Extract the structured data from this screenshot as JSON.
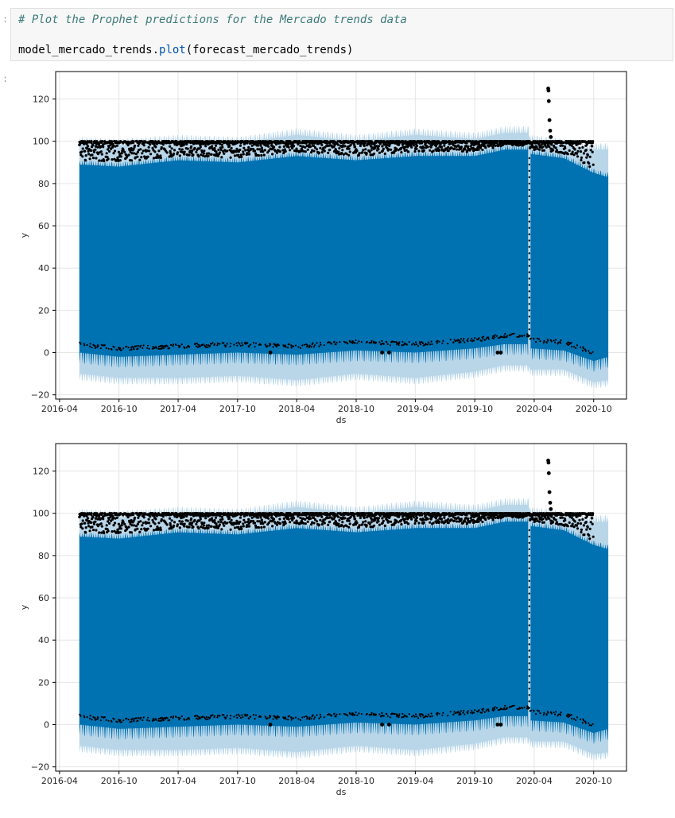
{
  "prompt_marker": ":",
  "cell": {
    "comment": "# Plot the Prophet predictions for the Mercado trends data",
    "code_object": "model_mercado_trends.",
    "code_method": "plot",
    "code_args": "(forecast_mercado_trends)"
  },
  "colors": {
    "forecast": "#0072B2",
    "uncertainty": "#B9D6E9",
    "observed": "#000000",
    "code_comment": "#3d7b7b",
    "code_call": "#0055aa"
  },
  "chart_data": [
    {
      "type": "line",
      "title": "",
      "xlabel": "ds",
      "ylabel": "y",
      "xticks": [
        "2016-04",
        "2016-10",
        "2017-04",
        "2017-10",
        "2018-04",
        "2018-10",
        "2019-04",
        "2019-10",
        "2020-04",
        "2020-10"
      ],
      "yticks": [
        -20,
        0,
        20,
        40,
        60,
        80,
        100,
        120
      ],
      "xlim": [
        "2016-03-20",
        "2021-01-10"
      ],
      "ylim": [
        -22,
        133
      ],
      "grid": true,
      "series": [
        {
          "kind": "forecast-band",
          "x": [
            "2016-06-01",
            "2016-10-01",
            "2017-04-01",
            "2017-10-01",
            "2018-04-01",
            "2018-10-01",
            "2019-04-01",
            "2019-10-01",
            "2020-01-01",
            "2020-03-14",
            "2020-03-20",
            "2020-07-01",
            "2020-10-01",
            "2020-11-15"
          ],
          "upper": [
            99,
            98,
            100,
            99,
            103,
            100,
            103,
            101,
            104,
            104,
            100,
            98,
            96,
            96
          ],
          "lower": [
            -10,
            -12,
            -12,
            -11,
            -13,
            -10,
            -12,
            -9,
            -6,
            -6,
            -8,
            -8,
            -14,
            -13
          ]
        },
        {
          "kind": "forecast-mean",
          "x": [
            "2016-06-01",
            "2016-10-01",
            "2017-04-01",
            "2017-10-01",
            "2018-04-01",
            "2018-10-01",
            "2019-04-01",
            "2019-10-01",
            "2020-01-01",
            "2020-03-14",
            "2020-03-20",
            "2020-07-01",
            "2020-10-01",
            "2020-11-15"
          ],
          "upper": [
            91,
            90,
            93,
            92,
            95,
            93,
            95,
            95,
            98,
            98,
            96,
            94,
            87,
            85
          ],
          "lower": [
            -3,
            -5,
            -4,
            -3,
            -4,
            -2,
            -3,
            -1,
            1,
            1,
            -1,
            -2,
            -7,
            -5
          ]
        },
        {
          "kind": "observed-points",
          "x_range": [
            "2016-06-01",
            "2020-09-30"
          ],
          "y_typical": [
            90,
            100
          ],
          "outliers": [
            {
              "x": "2018-01-10",
              "y": 0
            },
            {
              "x": "2018-12-20",
              "y": 0
            },
            {
              "x": "2019-01-10",
              "y": 0
            },
            {
              "x": "2019-12-10",
              "y": 0
            },
            {
              "x": "2019-12-20",
              "y": 0
            },
            {
              "x": "2020-05-14",
              "y": 125
            },
            {
              "x": "2020-05-15",
              "y": 124
            },
            {
              "x": "2020-05-16",
              "y": 119
            },
            {
              "x": "2020-05-18",
              "y": 110
            },
            {
              "x": "2020-05-20",
              "y": 105
            },
            {
              "x": "2020-05-22",
              "y": 102
            }
          ]
        }
      ]
    },
    {
      "type": "line",
      "title": "",
      "xlabel": "ds",
      "ylabel": "y",
      "xticks": [
        "2016-04",
        "2016-10",
        "2017-04",
        "2017-10",
        "2018-04",
        "2018-10",
        "2019-04",
        "2019-10",
        "2020-04",
        "2020-10"
      ],
      "yticks": [
        -20,
        0,
        20,
        40,
        60,
        80,
        100,
        120
      ],
      "xlim": [
        "2016-03-20",
        "2021-01-10"
      ],
      "ylim": [
        -22,
        133
      ],
      "grid": true,
      "series": [
        {
          "kind": "forecast-band",
          "x": [
            "2016-06-01",
            "2016-10-01",
            "2017-04-01",
            "2017-10-01",
            "2018-04-01",
            "2018-10-01",
            "2019-04-01",
            "2019-10-01",
            "2020-01-01",
            "2020-03-14",
            "2020-03-20",
            "2020-07-01",
            "2020-10-01",
            "2020-11-15"
          ],
          "upper": [
            99,
            98,
            100,
            99,
            103,
            100,
            103,
            101,
            104,
            104,
            100,
            98,
            96,
            96
          ],
          "lower": [
            -10,
            -12,
            -12,
            -11,
            -13,
            -10,
            -12,
            -9,
            -6,
            -6,
            -8,
            -8,
            -14,
            -13
          ]
        },
        {
          "kind": "forecast-mean",
          "x": [
            "2016-06-01",
            "2016-10-01",
            "2017-04-01",
            "2017-10-01",
            "2018-04-01",
            "2018-10-01",
            "2019-04-01",
            "2019-10-01",
            "2020-01-01",
            "2020-03-14",
            "2020-03-20",
            "2020-07-01",
            "2020-10-01",
            "2020-11-15"
          ],
          "upper": [
            91,
            90,
            93,
            92,
            95,
            93,
            95,
            95,
            98,
            98,
            96,
            94,
            87,
            85
          ],
          "lower": [
            -3,
            -5,
            -4,
            -3,
            -4,
            -2,
            -3,
            -1,
            1,
            1,
            -1,
            -2,
            -7,
            -5
          ]
        },
        {
          "kind": "observed-points",
          "x_range": [
            "2016-06-01",
            "2020-09-30"
          ],
          "y_typical": [
            90,
            100
          ],
          "outliers": [
            {
              "x": "2018-01-10",
              "y": 0
            },
            {
              "x": "2018-12-20",
              "y": 0
            },
            {
              "x": "2019-01-10",
              "y": 0
            },
            {
              "x": "2019-12-10",
              "y": 0
            },
            {
              "x": "2019-12-20",
              "y": 0
            },
            {
              "x": "2020-05-14",
              "y": 125
            },
            {
              "x": "2020-05-15",
              "y": 124
            },
            {
              "x": "2020-05-16",
              "y": 119
            },
            {
              "x": "2020-05-18",
              "y": 110
            },
            {
              "x": "2020-05-20",
              "y": 105
            },
            {
              "x": "2020-05-22",
              "y": 102
            }
          ]
        }
      ]
    }
  ]
}
